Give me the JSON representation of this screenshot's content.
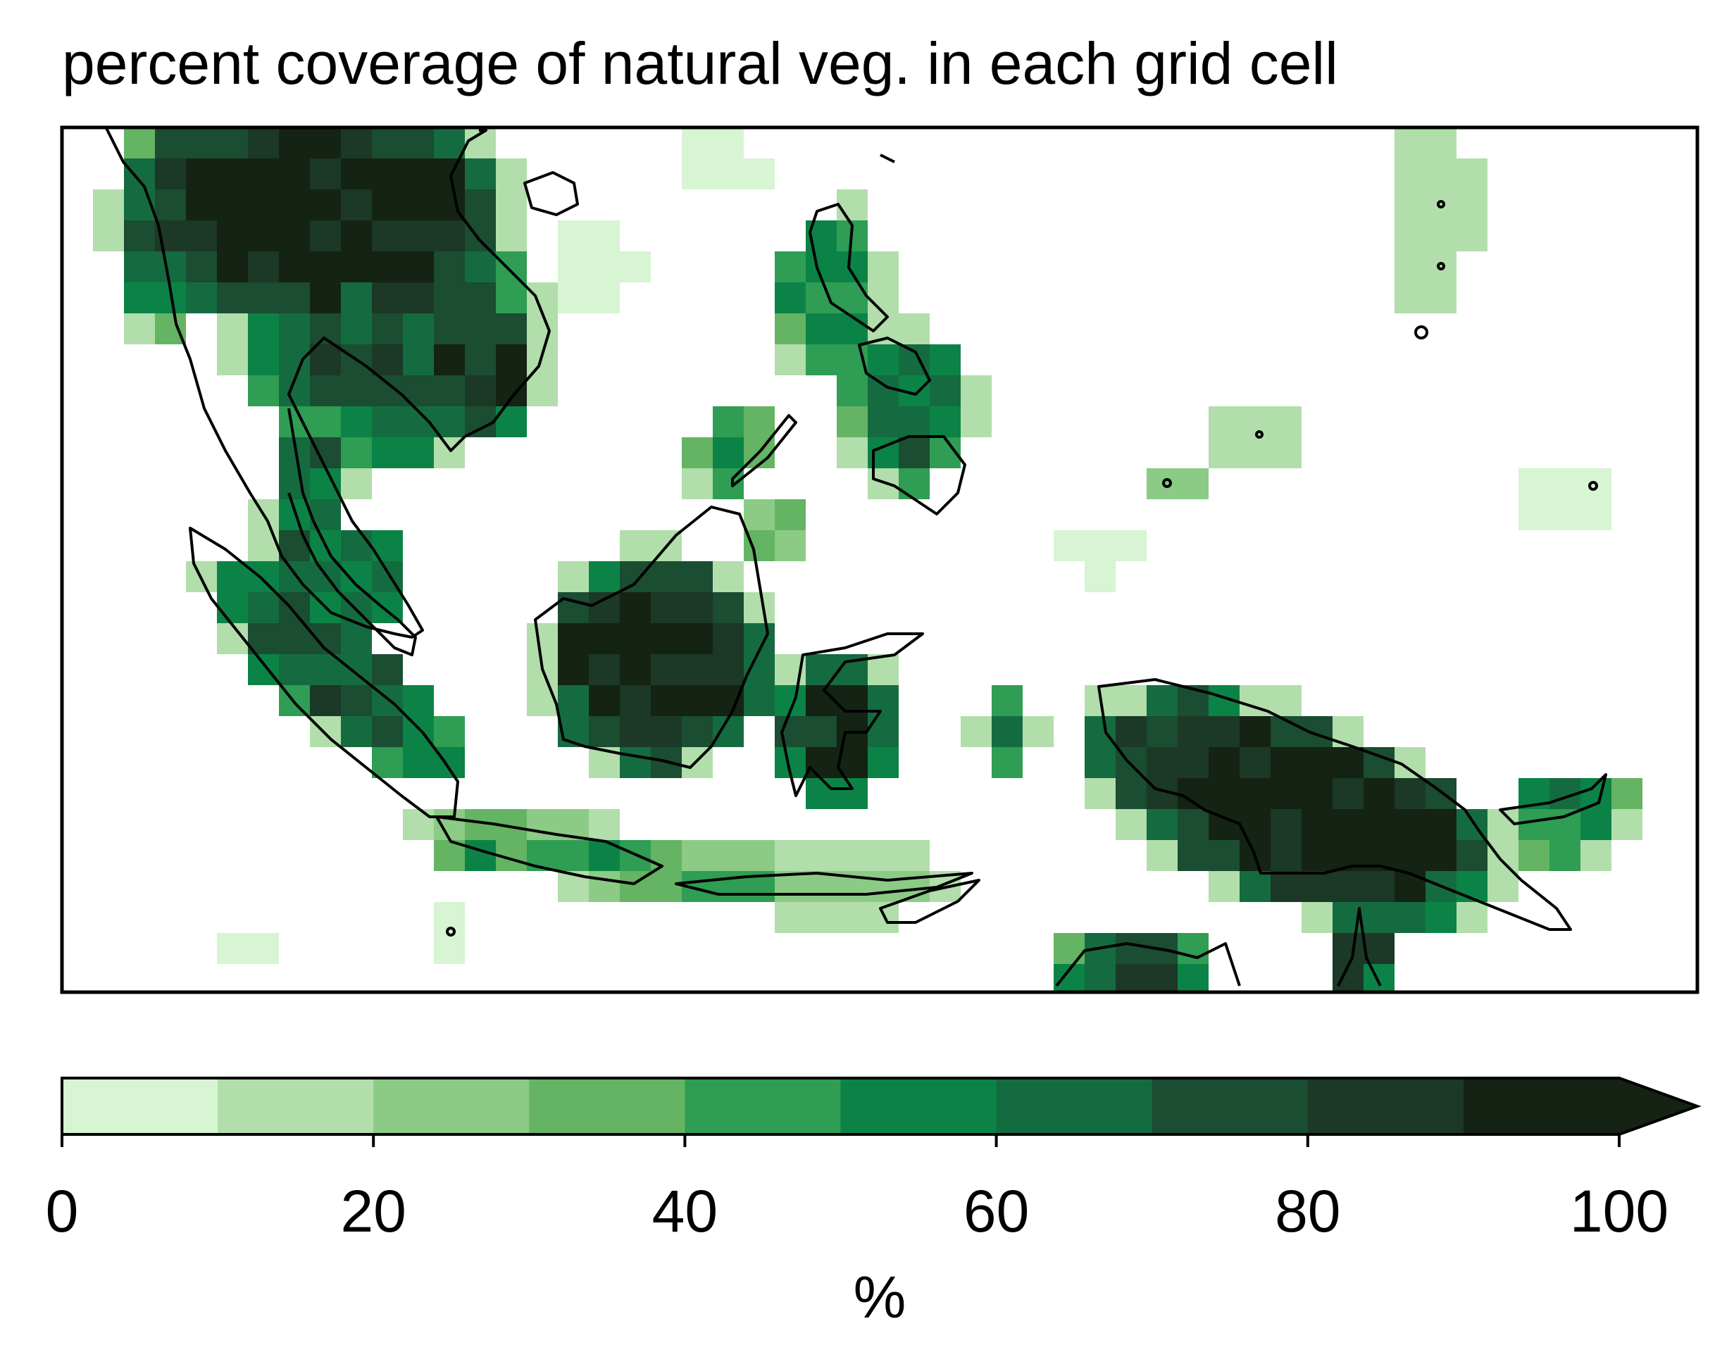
{
  "title": "percent coverage of natural veg. in each grid cell",
  "map": {
    "region": "Maritime Southeast Asia",
    "legend_placement": "bottom",
    "coastlines": true
  },
  "colorbar": {
    "label": "%",
    "min": 0,
    "max": 100,
    "extend": "max",
    "ticks": [
      "0",
      "20",
      "40",
      "60",
      "80",
      "100"
    ],
    "levels": [
      0,
      10,
      20,
      30,
      40,
      50,
      60,
      70,
      80,
      90,
      100
    ],
    "colors": [
      "#d7f4d3",
      "#b1deaa",
      "#8ccb85",
      "#64b464",
      "#2f9d53",
      "#0c8346",
      "#156b40",
      "#1a4d31",
      "#1c3827",
      "#142314"
    ],
    "extend_color": "#142314"
  },
  "chart_data": {
    "type": "heatmap",
    "title": "percent coverage of natural veg. in each grid cell",
    "colorbar_label": "%",
    "value_range": [
      0,
      100
    ]
  }
}
